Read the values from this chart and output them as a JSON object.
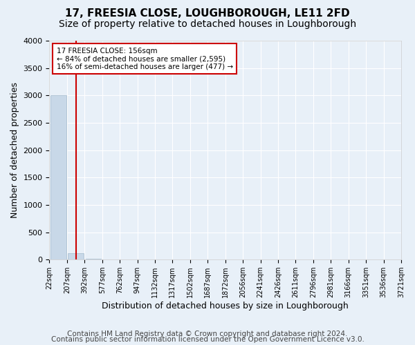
{
  "title": "17, FREESIA CLOSE, LOUGHBOROUGH, LE11 2FD",
  "subtitle": "Size of property relative to detached houses in Loughborough",
  "xlabel": "Distribution of detached houses by size in Loughborough",
  "ylabel": "Number of detached properties",
  "footnote1": "Contains HM Land Registry data © Crown copyright and database right 2024.",
  "footnote2": "Contains public sector information licensed under the Open Government Licence v3.0.",
  "annotation_title": "17 FREESIA CLOSE: 156sqm",
  "annotation_line2": "← 84% of detached houses are smaller (2,595)",
  "annotation_line3": "16% of semi-detached houses are larger (477) →",
  "bin_labels": [
    "22sqm",
    "207sqm",
    "392sqm",
    "577sqm",
    "762sqm",
    "947sqm",
    "1132sqm",
    "1317sqm",
    "1502sqm",
    "1687sqm",
    "1872sqm",
    "2056sqm",
    "2241sqm",
    "2426sqm",
    "2611sqm",
    "2796sqm",
    "2981sqm",
    "3166sqm",
    "3351sqm",
    "3536sqm",
    "3721sqm"
  ],
  "bar_values": [
    3000,
    120,
    10,
    5,
    2,
    1,
    1,
    0,
    0,
    0,
    0,
    0,
    0,
    0,
    0,
    0,
    0,
    0,
    0,
    0
  ],
  "bar_color": "#c8d8e8",
  "bar_edge_color": "#a0b8cc",
  "bg_color": "#e8f0f8",
  "grid_color": "#ffffff",
  "redline_x": 1,
  "redline_color": "#cc0000",
  "ylim": [
    0,
    4000
  ],
  "yticks": [
    0,
    500,
    1000,
    1500,
    2000,
    2500,
    3000,
    3500,
    4000
  ],
  "annotation_box_color": "#ffffff",
  "annotation_box_edge": "#cc0000",
  "title_fontsize": 11,
  "subtitle_fontsize": 10,
  "axis_fontsize": 9,
  "tick_fontsize": 8,
  "footnote_fontsize": 7.5
}
